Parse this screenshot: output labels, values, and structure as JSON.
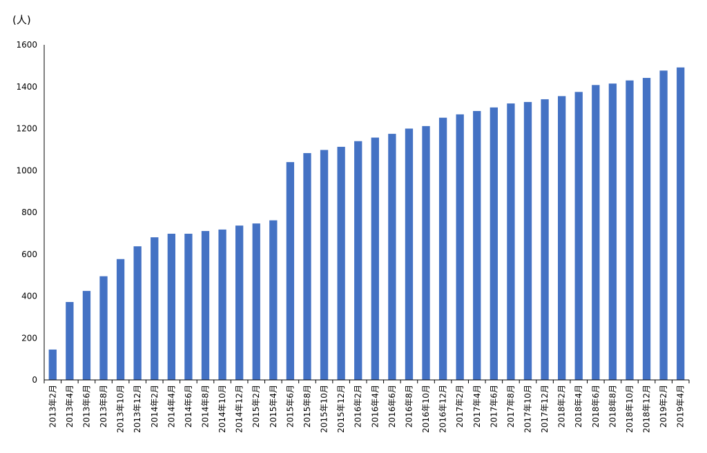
{
  "chart_data": {
    "type": "bar",
    "ylabel": "(人)",
    "ylim": [
      0,
      1600
    ],
    "yticks": [
      0,
      200,
      400,
      600,
      800,
      1000,
      1200,
      1400,
      1600
    ],
    "bar_color": "#4472c4",
    "grid": false,
    "categories": [
      "2013年2月",
      "2013年4月",
      "2013年6月",
      "2013年8月",
      "2013年10月",
      "2013年12月",
      "2014年2月",
      "2014年4月",
      "2014年6月",
      "2014年8月",
      "2014年10月",
      "2014年12月",
      "2015年2月",
      "2015年4月",
      "2015年6月",
      "2015年8月",
      "2015年10月",
      "2015年12月",
      "2016年2月",
      "2016年4月",
      "2016年6月",
      "2016年8月",
      "2016年10月",
      "2016年12月",
      "2017年2月",
      "2017年4月",
      "2017年6月",
      "2017年8月",
      "2017年10月",
      "2017年12月",
      "2018年2月",
      "2018年4月",
      "2018年6月",
      "2018年8月",
      "2018年10月",
      "2018年12月",
      "2019年2月",
      "2019年4月"
    ],
    "values": [
      145,
      372,
      425,
      495,
      577,
      638,
      681,
      698,
      698,
      711,
      718,
      737,
      747,
      762,
      1040,
      1083,
      1098,
      1113,
      1140,
      1157,
      1175,
      1200,
      1212,
      1252,
      1268,
      1284,
      1301,
      1320,
      1327,
      1340,
      1355,
      1375,
      1408,
      1415,
      1430,
      1442,
      1477,
      1492
    ]
  }
}
